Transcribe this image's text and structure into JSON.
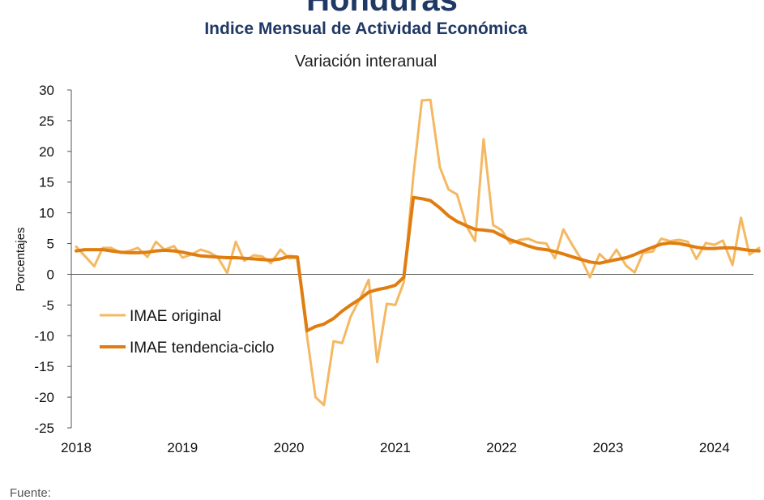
{
  "header": {
    "top_title": "Honduras",
    "subtitle": "Indice Mensual de  Actividad Económica",
    "caption": "Variación interanual",
    "source": "Fuente:"
  },
  "colors": {
    "original": "#f5b862",
    "trend": "#e07d10",
    "title": "#1f3864",
    "axis": "#555555"
  },
  "chart_data": {
    "type": "line",
    "title": "Variación interanual",
    "ylabel": "Porcentajes",
    "xlabel": "",
    "ylim": [
      -25,
      30
    ],
    "yticks": [
      30,
      25,
      20,
      15,
      10,
      5,
      0,
      -5,
      -10,
      -15,
      -20,
      -25
    ],
    "ytick_labels": [
      "30",
      "25",
      "20",
      "15",
      "10",
      "5",
      "0",
      "-5",
      "-10",
      "-15",
      "-20",
      "-25"
    ],
    "xticks": [
      2018,
      2019,
      2020,
      2021,
      2022,
      2023,
      2024
    ],
    "xtick_labels": [
      "2018",
      "2019",
      "2020",
      "2021",
      "2022",
      "2023",
      "2024"
    ],
    "xlim": [
      2018,
      2024.42
    ],
    "grid": false,
    "legend_position": "lower-left",
    "series": [
      {
        "name": "IMAE original",
        "color": "#f5b862",
        "x": [
          2018.0,
          2018.08,
          2018.17,
          2018.25,
          2018.33,
          2018.42,
          2018.5,
          2018.58,
          2018.67,
          2018.75,
          2018.83,
          2018.92,
          2019.0,
          2019.08,
          2019.17,
          2019.25,
          2019.33,
          2019.42,
          2019.5,
          2019.58,
          2019.67,
          2019.75,
          2019.83,
          2019.92,
          2020.0,
          2020.08,
          2020.17,
          2020.25,
          2020.33,
          2020.42,
          2020.5,
          2020.58,
          2020.67,
          2020.75,
          2020.83,
          2020.92,
          2021.0,
          2021.08,
          2021.17,
          2021.25,
          2021.33,
          2021.42,
          2021.5,
          2021.58,
          2021.67,
          2021.75,
          2021.83,
          2021.92,
          2022.0,
          2022.08,
          2022.17,
          2022.25,
          2022.33,
          2022.42,
          2022.5,
          2022.58,
          2022.67,
          2022.75,
          2022.83,
          2022.92,
          2023.0,
          2023.08,
          2023.17,
          2023.25,
          2023.33,
          2023.42,
          2023.5,
          2023.58,
          2023.67,
          2023.75,
          2023.83,
          2023.92,
          2024.0,
          2024.08,
          2024.17,
          2024.25,
          2024.33,
          2024.42
        ],
        "y": [
          4.5,
          3.0,
          1.3,
          4.3,
          4.3,
          3.5,
          3.8,
          4.3,
          2.8,
          5.3,
          4.0,
          4.6,
          2.7,
          3.2,
          4.0,
          3.6,
          2.8,
          0.2,
          5.3,
          2.2,
          3.1,
          2.9,
          1.8,
          4.0,
          2.6,
          2.7,
          -10.0,
          -20.0,
          -21.3,
          -10.9,
          -11.2,
          -6.9,
          -3.9,
          -0.9,
          -14.3,
          -4.8,
          -5.0,
          -1.3,
          16.0,
          28.3,
          28.4,
          17.4,
          13.8,
          13.0,
          7.8,
          5.4,
          22.0,
          8.0,
          7.2,
          5.0,
          5.6,
          5.8,
          5.2,
          5.0,
          2.6,
          7.3,
          4.6,
          2.4,
          -0.5,
          3.3,
          2.0,
          4.0,
          1.4,
          0.3,
          3.5,
          3.7,
          5.8,
          5.4,
          5.6,
          5.3,
          2.5,
          5.1,
          4.8,
          5.5,
          1.5,
          9.2,
          3.2,
          4.3
        ]
      },
      {
        "name": "IMAE tendencia-ciclo",
        "color": "#e07d10",
        "x": [
          2018.0,
          2018.08,
          2018.17,
          2018.25,
          2018.33,
          2018.42,
          2018.5,
          2018.58,
          2018.67,
          2018.75,
          2018.83,
          2018.92,
          2019.0,
          2019.08,
          2019.17,
          2019.25,
          2019.33,
          2019.42,
          2019.5,
          2019.58,
          2019.67,
          2019.75,
          2019.83,
          2019.92,
          2020.0,
          2020.08,
          2020.17,
          2020.25,
          2020.33,
          2020.42,
          2020.5,
          2020.58,
          2020.67,
          2020.75,
          2020.83,
          2020.92,
          2021.0,
          2021.08,
          2021.17,
          2021.25,
          2021.33,
          2021.42,
          2021.5,
          2021.58,
          2021.67,
          2021.75,
          2021.83,
          2021.92,
          2022.0,
          2022.08,
          2022.17,
          2022.25,
          2022.33,
          2022.42,
          2022.5,
          2022.58,
          2022.67,
          2022.75,
          2022.83,
          2022.92,
          2023.0,
          2023.08,
          2023.17,
          2023.25,
          2023.33,
          2023.42,
          2023.5,
          2023.58,
          2023.67,
          2023.75,
          2023.83,
          2023.92,
          2024.0,
          2024.08,
          2024.17,
          2024.25,
          2024.33,
          2024.42
        ],
        "y": [
          3.8,
          4.0,
          4.0,
          4.0,
          3.8,
          3.6,
          3.5,
          3.5,
          3.6,
          3.8,
          3.9,
          3.8,
          3.6,
          3.3,
          3.0,
          2.9,
          2.8,
          2.7,
          2.7,
          2.6,
          2.5,
          2.4,
          2.3,
          2.5,
          2.9,
          2.8,
          -9.2,
          -8.5,
          -8.1,
          -7.2,
          -6.0,
          -5.0,
          -4.0,
          -2.9,
          -2.5,
          -2.2,
          -1.8,
          -0.5,
          12.5,
          12.3,
          12.0,
          10.8,
          9.5,
          8.6,
          7.9,
          7.3,
          7.2,
          7.0,
          6.3,
          5.6,
          5.1,
          4.6,
          4.2,
          4.0,
          3.7,
          3.3,
          2.8,
          2.4,
          2.0,
          1.8,
          2.1,
          2.4,
          2.7,
          3.2,
          3.8,
          4.4,
          4.9,
          5.1,
          5.0,
          4.7,
          4.4,
          4.2,
          4.2,
          4.3,
          4.3,
          4.1,
          3.9,
          3.8
        ]
      }
    ]
  }
}
